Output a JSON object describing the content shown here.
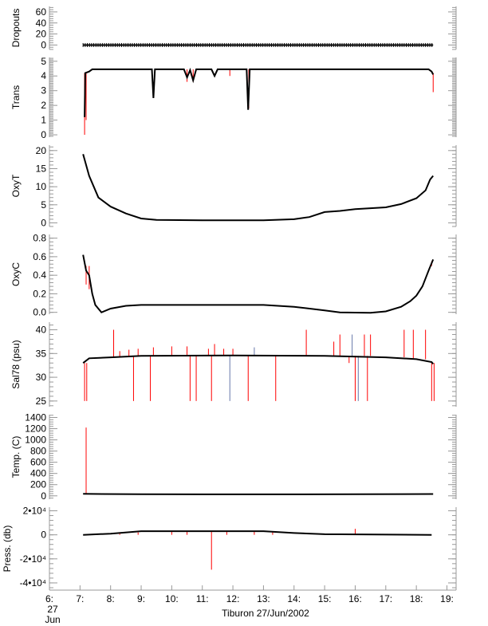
{
  "chart_data": {
    "type": "line",
    "title": "",
    "xlabel": "Tiburon 27/Jun/2002",
    "x_units": "hour of day",
    "xlim": [
      6,
      19.3
    ],
    "x_ticks": [
      6,
      7,
      8,
      9,
      10,
      11,
      12,
      13,
      14,
      15,
      16,
      17,
      18,
      19
    ],
    "x_tick_labels": [
      "6:",
      "7:",
      "8:",
      "9:",
      "10:",
      "11:",
      "12:",
      "13:",
      "14:",
      "15:",
      "16:",
      "17:",
      "18:",
      "19:"
    ],
    "x_first_tick_extra": [
      "27",
      "Jun"
    ],
    "colors": {
      "data": "#000000",
      "flagged": "#ff0000",
      "alt": "#6677aa",
      "axis": "#999999"
    },
    "panels": [
      {
        "name": "dropouts",
        "ylabel": "Dropouts",
        "ylim": [
          -8,
          70
        ],
        "ticks": [
          0,
          20,
          40,
          60
        ],
        "tick_labels": [
          "0",
          "20",
          "40",
          "60"
        ],
        "series": [
          [
            7.1,
            0
          ],
          [
            18.55,
            0
          ]
        ],
        "markers": true,
        "spikes": []
      },
      {
        "name": "trans",
        "ylabel": "Trans",
        "ylim": [
          -0.16,
          5.26
        ],
        "ticks": [
          0,
          1,
          2,
          3,
          4,
          5
        ],
        "tick_labels": [
          "0",
          "1",
          "2",
          "3",
          "4",
          "5"
        ],
        "series": [
          [
            7.15,
            1.2
          ],
          [
            7.17,
            4.2
          ],
          [
            7.3,
            4.3
          ],
          [
            7.4,
            4.45
          ],
          [
            9.35,
            4.45
          ],
          [
            9.4,
            2.5
          ],
          [
            9.45,
            4.45
          ],
          [
            10.4,
            4.45
          ],
          [
            10.5,
            3.9
          ],
          [
            10.6,
            4.4
          ],
          [
            10.7,
            3.7
          ],
          [
            10.8,
            4.45
          ],
          [
            11.3,
            4.45
          ],
          [
            11.4,
            4.0
          ],
          [
            11.5,
            4.45
          ],
          [
            12.45,
            4.45
          ],
          [
            12.5,
            1.7
          ],
          [
            12.55,
            4.45
          ],
          [
            18.4,
            4.45
          ],
          [
            18.5,
            4.3
          ],
          [
            18.55,
            4.1
          ]
        ],
        "spikes": [
          [
            7.15,
            4.2,
            0.0,
            "flagged"
          ],
          [
            7.2,
            4.2,
            1.0,
            "flagged"
          ],
          [
            10.5,
            4.45,
            3.6,
            "flagged"
          ],
          [
            10.7,
            4.45,
            3.6,
            "flagged"
          ],
          [
            12.52,
            4.45,
            1.8,
            "flagged"
          ],
          [
            18.55,
            4.2,
            2.9,
            "flagged"
          ],
          [
            11.9,
            4.45,
            4.0,
            "flagged"
          ]
        ]
      },
      {
        "name": "oxyt",
        "ylabel": "OxyT",
        "ylim": [
          -1,
          21.5
        ],
        "ticks": [
          0,
          5,
          10,
          15,
          20
        ],
        "tick_labels": [
          "0",
          "5",
          "10",
          "15",
          "20"
        ],
        "series": [
          [
            7.1,
            19
          ],
          [
            7.3,
            13
          ],
          [
            7.6,
            7
          ],
          [
            8,
            4.5
          ],
          [
            8.5,
            2.6
          ],
          [
            9,
            1.2
          ],
          [
            9.5,
            0.8
          ],
          [
            11,
            0.7
          ],
          [
            13,
            0.7
          ],
          [
            14,
            1
          ],
          [
            14.5,
            1.6
          ],
          [
            15,
            3
          ],
          [
            15.5,
            3.3
          ],
          [
            16,
            3.8
          ],
          [
            17,
            4.3
          ],
          [
            17.5,
            5.2
          ],
          [
            18,
            6.8
          ],
          [
            18.3,
            9
          ],
          [
            18.45,
            12
          ],
          [
            18.55,
            13
          ]
        ],
        "spikes": []
      },
      {
        "name": "oxyc",
        "ylabel": "OxyC",
        "ylim": [
          -0.02,
          0.84
        ],
        "ticks": [
          0,
          0.2,
          0.4,
          0.6,
          0.8
        ],
        "tick_labels": [
          "0.0",
          "0.2",
          "0.4",
          "0.6",
          "0.8"
        ],
        "series": [
          [
            7.1,
            0.62
          ],
          [
            7.2,
            0.45
          ],
          [
            7.3,
            0.4
          ],
          [
            7.4,
            0.2
          ],
          [
            7.5,
            0.08
          ],
          [
            7.7,
            0.0
          ],
          [
            8,
            0.04
          ],
          [
            8.5,
            0.07
          ],
          [
            9,
            0.08
          ],
          [
            13,
            0.08
          ],
          [
            14,
            0.06
          ],
          [
            15,
            0.02
          ],
          [
            15.5,
            0.0
          ],
          [
            16.5,
            -0.005
          ],
          [
            17,
            0.01
          ],
          [
            17.5,
            0.06
          ],
          [
            17.8,
            0.12
          ],
          [
            18,
            0.18
          ],
          [
            18.2,
            0.28
          ],
          [
            18.4,
            0.45
          ],
          [
            18.55,
            0.57
          ]
        ],
        "spikes": [
          [
            7.2,
            0.5,
            0.3,
            "flagged"
          ],
          [
            7.3,
            0.5,
            0.25,
            "flagged"
          ],
          [
            18.5,
            0.55,
            0.5,
            "flagged"
          ]
        ]
      },
      {
        "name": "sal78",
        "ylabel": "Sal78 (psu)",
        "ylim": [
          23.8,
          41.6
        ],
        "ticks": [
          25,
          30,
          35,
          40
        ],
        "tick_labels": [
          "25",
          "30",
          "35",
          "40"
        ],
        "series": [
          [
            7.1,
            33
          ],
          [
            7.3,
            34
          ],
          [
            8,
            34.2
          ],
          [
            9,
            34.5
          ],
          [
            12,
            34.6
          ],
          [
            15,
            34.5
          ],
          [
            17,
            34.2
          ],
          [
            18,
            33.8
          ],
          [
            18.5,
            33.2
          ],
          [
            18.55,
            32.8
          ]
        ],
        "spikes": [
          [
            7.15,
            33,
            25,
            "flagged"
          ],
          [
            7.22,
            33,
            25,
            "flagged"
          ],
          [
            8.1,
            34.2,
            40,
            "flagged"
          ],
          [
            8.3,
            34.3,
            35.5,
            "flagged"
          ],
          [
            8.6,
            34.4,
            35.8,
            "flagged"
          ],
          [
            8.75,
            34.4,
            25,
            "flagged"
          ],
          [
            8.9,
            34.4,
            36,
            "flagged"
          ],
          [
            9.3,
            34.5,
            25,
            "flagged"
          ],
          [
            9.4,
            34.5,
            36.3,
            "flagged"
          ],
          [
            10,
            34.5,
            36.5,
            "flagged"
          ],
          [
            10.5,
            34.5,
            36.5,
            "flagged"
          ],
          [
            10.6,
            34.5,
            25,
            "flagged"
          ],
          [
            10.8,
            34.5,
            25,
            "flagged"
          ],
          [
            11.2,
            34.6,
            36,
            "flagged"
          ],
          [
            11.3,
            34.6,
            25,
            "flagged"
          ],
          [
            11.4,
            34.6,
            37,
            "flagged"
          ],
          [
            11.7,
            34.6,
            36,
            "flagged"
          ],
          [
            11.9,
            34.6,
            25,
            "alt"
          ],
          [
            12.0,
            34.6,
            36,
            "flagged"
          ],
          [
            12.5,
            34.6,
            25,
            "flagged"
          ],
          [
            12.7,
            34.6,
            36.3,
            "alt"
          ],
          [
            13.4,
            34.6,
            25,
            "flagged"
          ],
          [
            14.4,
            34.5,
            40,
            "flagged"
          ],
          [
            15.3,
            34.5,
            37.5,
            "flagged"
          ],
          [
            15.5,
            34.5,
            39,
            "flagged"
          ],
          [
            15.8,
            34.5,
            33,
            "flagged"
          ],
          [
            15.9,
            34.5,
            39,
            "alt"
          ],
          [
            16.0,
            34.5,
            25,
            "flagged"
          ],
          [
            16.1,
            34.5,
            25,
            "alt"
          ],
          [
            16.3,
            34.5,
            39,
            "flagged"
          ],
          [
            16.4,
            34.5,
            25,
            "flagged"
          ],
          [
            16.5,
            34.5,
            39,
            "flagged"
          ],
          [
            17.6,
            34.2,
            40,
            "flagged"
          ],
          [
            17.9,
            34.0,
            40,
            "flagged"
          ],
          [
            18.3,
            33.8,
            40,
            "flagged"
          ],
          [
            18.5,
            33.2,
            25,
            "flagged"
          ],
          [
            18.58,
            33,
            25,
            "flagged"
          ]
        ]
      },
      {
        "name": "temp",
        "ylabel": "Temp. (C)",
        "ylim": [
          -60,
          1450
        ],
        "ticks": [
          0,
          200,
          400,
          600,
          800,
          1000,
          1200,
          1400
        ],
        "tick_labels": [
          "0",
          "200",
          "400",
          "600",
          "800",
          "1000",
          "1200",
          "1400"
        ],
        "series": [
          [
            7.1,
            35
          ],
          [
            9,
            28
          ],
          [
            13,
            27
          ],
          [
            16,
            28
          ],
          [
            18.55,
            33
          ]
        ],
        "spikes": [
          [
            7.2,
            35,
            1220,
            "flagged"
          ]
        ]
      },
      {
        "name": "press",
        "ylabel": "Press. (db)",
        "ylim": [
          -46000,
          23000
        ],
        "ticks": [
          -40000,
          -20000,
          0,
          20000
        ],
        "tick_labels": [
          "-4•10⁴",
          "-2•10⁴",
          "0",
          "2•10⁴"
        ],
        "series": [
          [
            7.1,
            0
          ],
          [
            8,
            1000
          ],
          [
            9,
            3000
          ],
          [
            13,
            3000
          ],
          [
            14,
            1500
          ],
          [
            15,
            500
          ],
          [
            18.5,
            0
          ]
        ],
        "spikes": [
          [
            8.3,
            1000,
            0,
            "flagged"
          ],
          [
            8.9,
            2000,
            0,
            "flagged"
          ],
          [
            10,
            3000,
            0,
            "flagged"
          ],
          [
            10.5,
            3000,
            0,
            "flagged"
          ],
          [
            11.3,
            3000,
            -29000,
            "flagged"
          ],
          [
            11.8,
            3000,
            0,
            "flagged"
          ],
          [
            12.7,
            3000,
            0,
            "flagged"
          ],
          [
            13.3,
            2500,
            0,
            "flagged"
          ],
          [
            16,
            300,
            5000,
            "flagged"
          ]
        ]
      }
    ]
  }
}
